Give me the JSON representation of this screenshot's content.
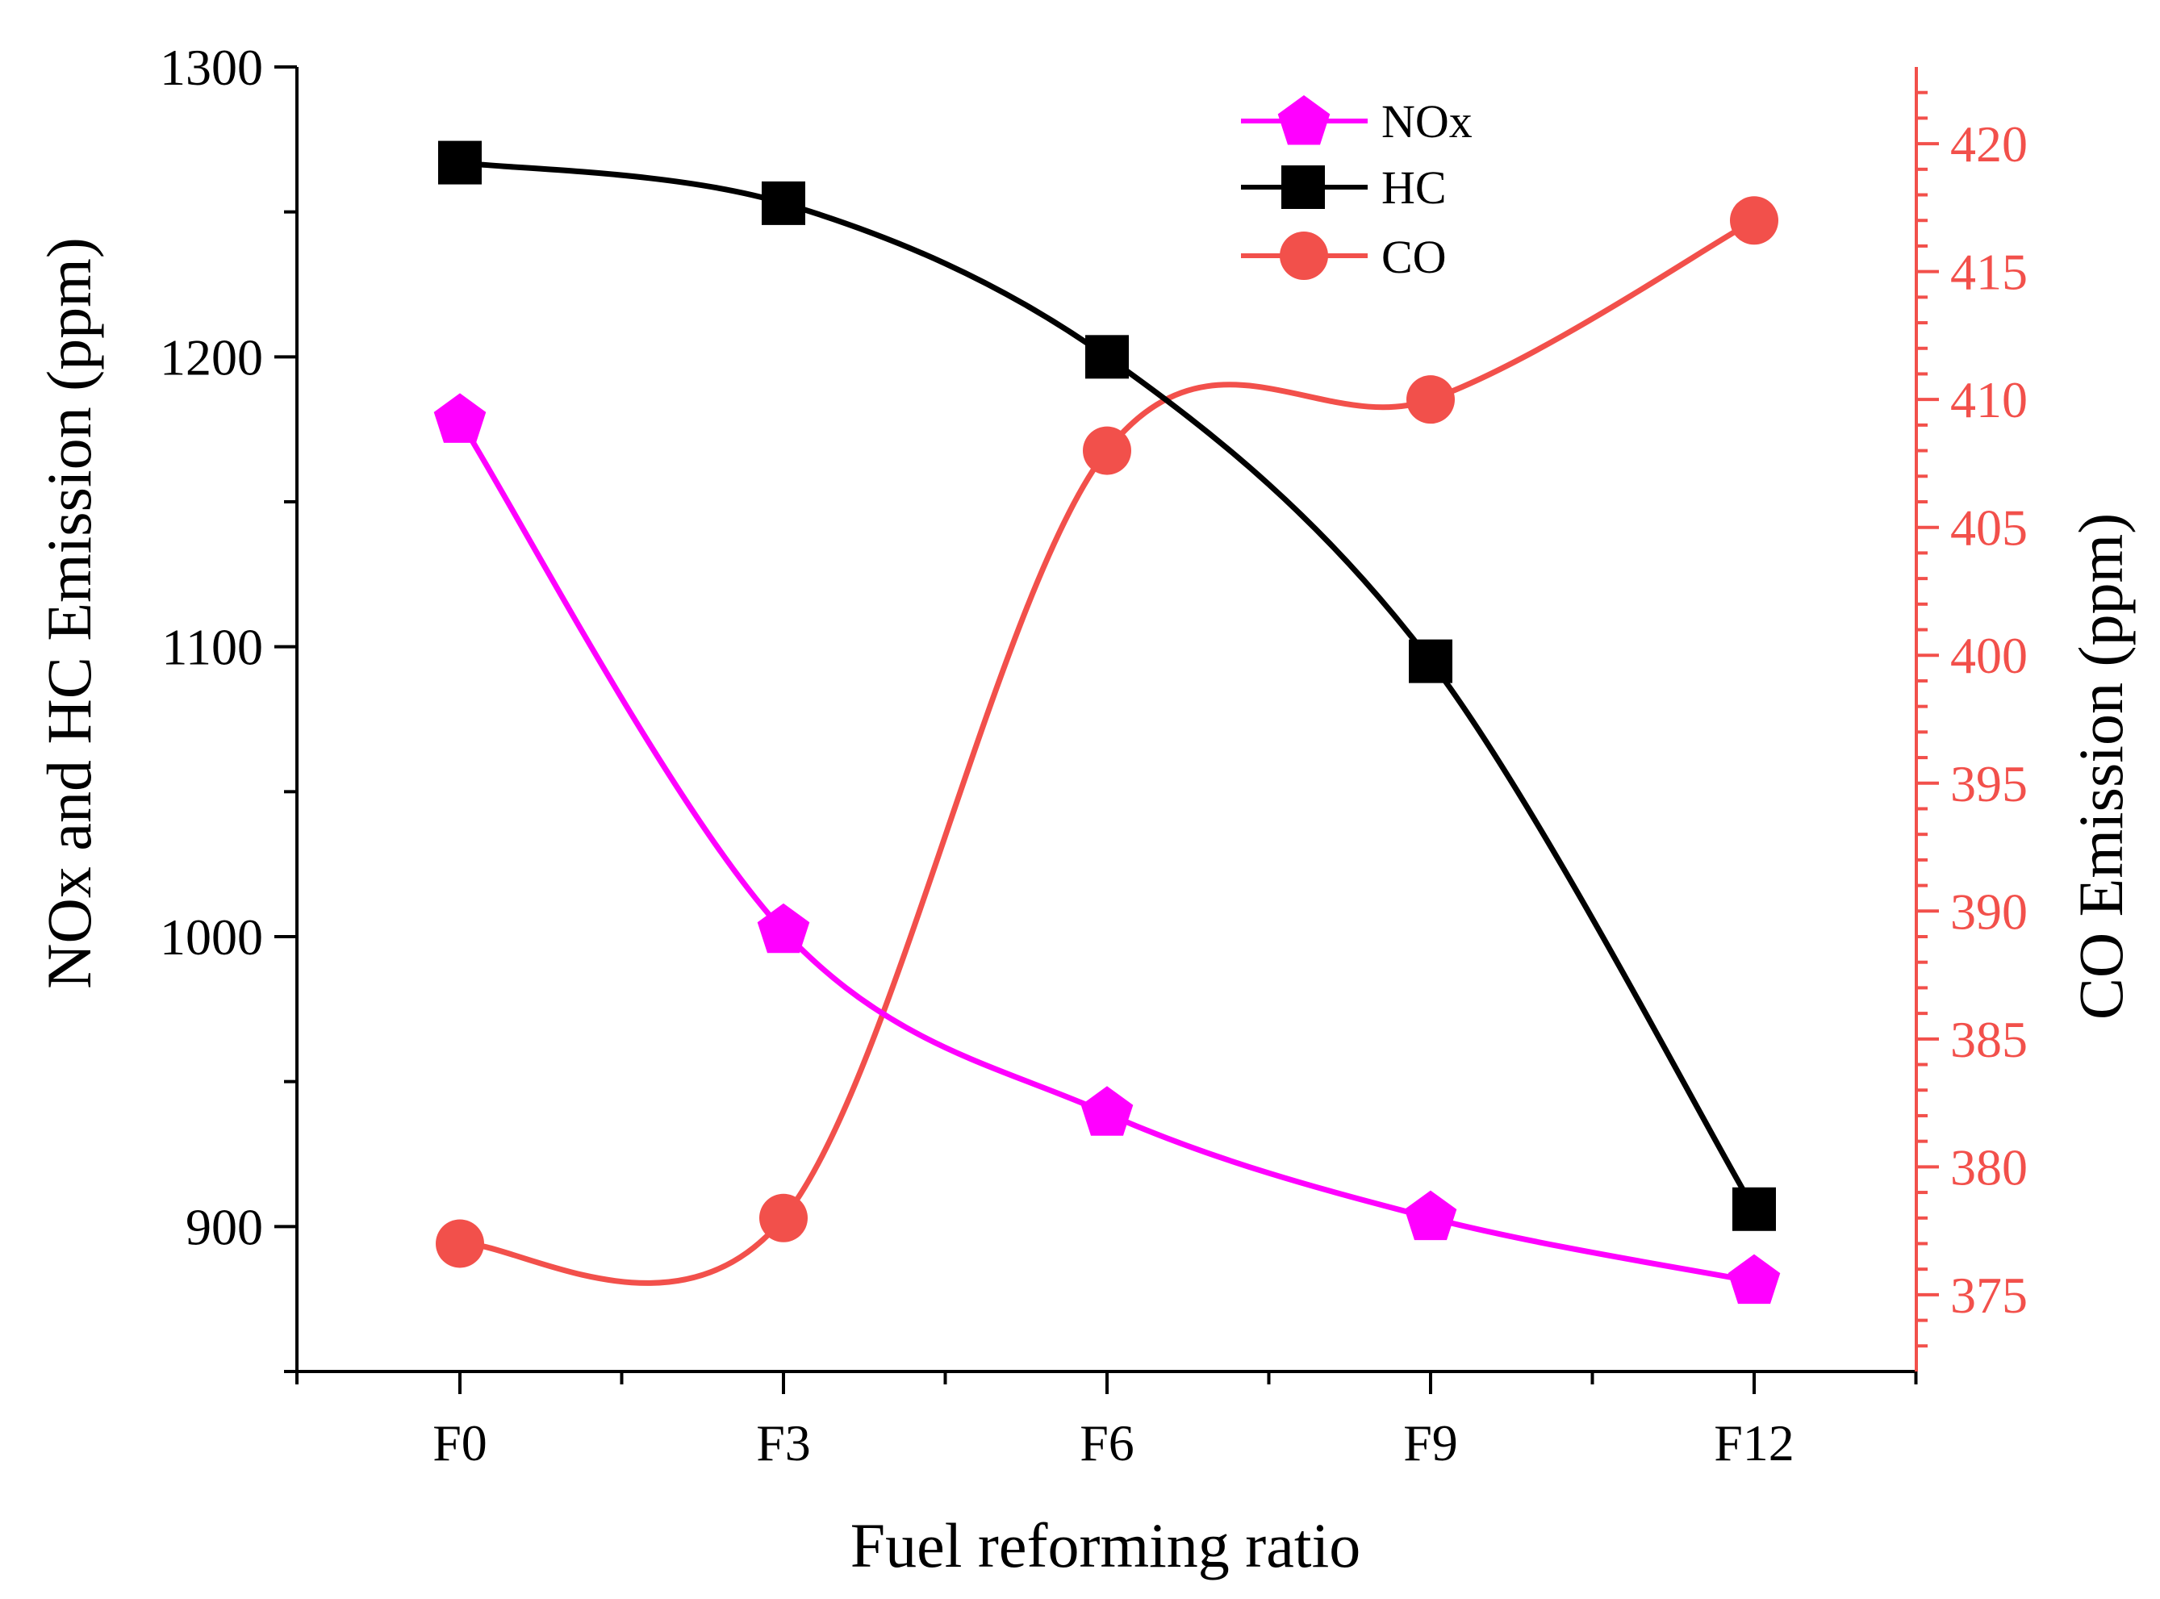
{
  "chart_data": {
    "type": "line",
    "xlabel": "Fuel reforming ratio",
    "ylabel_left": "NOx and HC Emission (ppm)",
    "ylabel_right": "CO Emission (ppm)",
    "categories": [
      "F0",
      "F3",
      "F6",
      "F9",
      "F12"
    ],
    "y_left": {
      "range": [
        850,
        1300
      ],
      "major_ticks": [
        900,
        1000,
        1100,
        1200,
        1300
      ],
      "minor_ticks": [
        850,
        950,
        1050,
        1150,
        1250
      ],
      "tick_labels": [
        "900",
        "1000",
        "1100",
        "1200",
        "1300"
      ]
    },
    "y_right": {
      "range": [
        372,
        423
      ],
      "major_ticks": [
        375,
        380,
        385,
        390,
        395,
        400,
        405,
        410,
        415,
        420
      ],
      "tick_labels": [
        "375",
        "380",
        "385",
        "390",
        "395",
        "400",
        "405",
        "410",
        "415",
        "420"
      ],
      "color": "#f2504b"
    },
    "series": [
      {
        "name": "NOx",
        "axis": "left",
        "color": "#ff00ff",
        "marker": "pentagon",
        "line_style": "solid",
        "values": [
          1178,
          1002,
          939,
          903,
          881
        ]
      },
      {
        "name": "HC",
        "axis": "left",
        "color": "#000000",
        "marker": "square",
        "line_style": "solid",
        "values": [
          1267,
          1253,
          1200,
          1095,
          906
        ]
      },
      {
        "name": "CO",
        "axis": "right",
        "color": "#f2504b",
        "marker": "circle",
        "line_style": "solid",
        "values": [
          377,
          378,
          408,
          410,
          417
        ]
      }
    ],
    "legend": {
      "position": "top-center",
      "entries": [
        "NOx",
        "HC",
        "CO"
      ]
    },
    "grid": false
  }
}
